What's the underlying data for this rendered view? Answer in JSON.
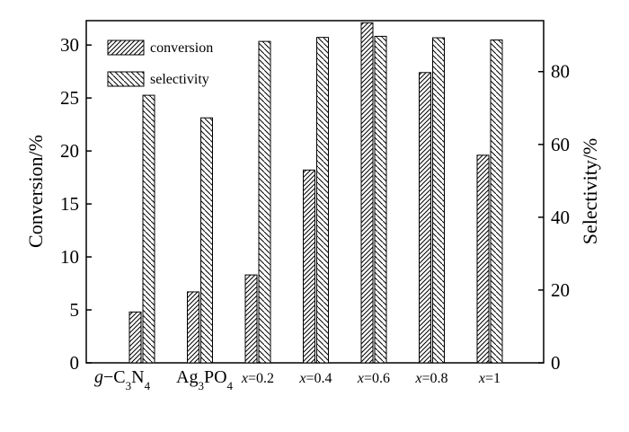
{
  "chart_data": {
    "type": "bar",
    "categories": [
      {
        "label": "g−C3N4",
        "parts": [
          {
            "t": "g",
            "i": true
          },
          {
            "t": "−C"
          },
          {
            "t": "3",
            "sub": true
          },
          {
            "t": "N"
          },
          {
            "t": "4",
            "sub": true
          }
        ]
      },
      {
        "label": "Ag3PO4",
        "parts": [
          {
            "t": "Ag"
          },
          {
            "t": "3",
            "sub": true
          },
          {
            "t": "PO"
          },
          {
            "t": "4",
            "sub": true
          }
        ]
      },
      {
        "label": "x=0.2",
        "parts": [
          {
            "t": "x",
            "i": true
          },
          {
            "t": "=0.2"
          }
        ]
      },
      {
        "label": "x=0.4",
        "parts": [
          {
            "t": "x",
            "i": true
          },
          {
            "t": "=0.4"
          }
        ]
      },
      {
        "label": "x=0.6",
        "parts": [
          {
            "t": "x",
            "i": true
          },
          {
            "t": "=0.6"
          }
        ]
      },
      {
        "label": "x=0.8",
        "parts": [
          {
            "t": "x",
            "i": true
          },
          {
            "t": "=0.8"
          }
        ]
      },
      {
        "label": "x=1",
        "parts": [
          {
            "t": "x",
            "i": true
          },
          {
            "t": "=1"
          }
        ]
      }
    ],
    "series": [
      {
        "name": "conversion",
        "axis": "left",
        "values": [
          4.8,
          6.7,
          8.3,
          18.2,
          32.1,
          27.4,
          19.6
        ]
      },
      {
        "name": "selectivity",
        "axis": "right",
        "values": [
          73.5,
          67.3,
          88.3,
          89.4,
          89.7,
          89.3,
          88.7
        ]
      }
    ],
    "ylabel": "Conversion/%",
    "y2label": "Selectivity/%",
    "ylim": [
      0,
      32.3
    ],
    "y2lim": [
      0,
      94
    ],
    "yticks": [
      0,
      5,
      10,
      15,
      20,
      25,
      30
    ],
    "y2ticks": [
      0,
      20,
      40,
      60,
      80
    ],
    "legend_position": "top-left",
    "grid": false
  }
}
